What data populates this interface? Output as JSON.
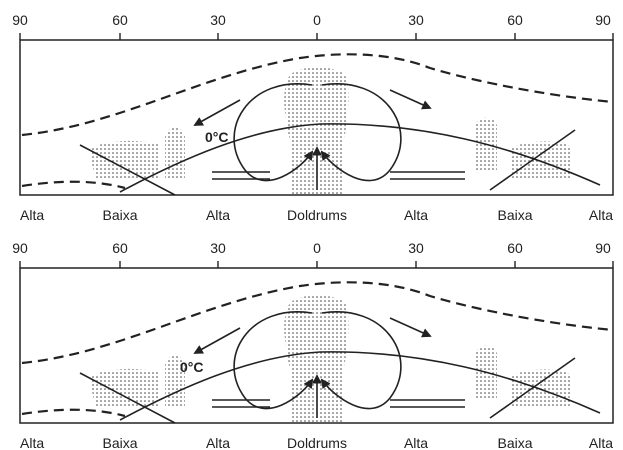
{
  "panels": [
    {
      "top_labels": [
        "90",
        "60",
        "30",
        "0",
        "30",
        "60",
        "90"
      ],
      "bottom_labels": [
        "Alta",
        "Baixa",
        "Alta",
        "Doldrums",
        "Alta",
        "Baixa",
        "Alta"
      ],
      "isotherm_label": "0°C"
    },
    {
      "top_labels": [
        "90",
        "60",
        "30",
        "0",
        "30",
        "60",
        "90"
      ],
      "bottom_labels": [
        "Alta",
        "Baixa",
        "Alta",
        "Doldrums",
        "Alta",
        "Baixa",
        "Alta"
      ],
      "isotherm_label": "0°C"
    }
  ]
}
